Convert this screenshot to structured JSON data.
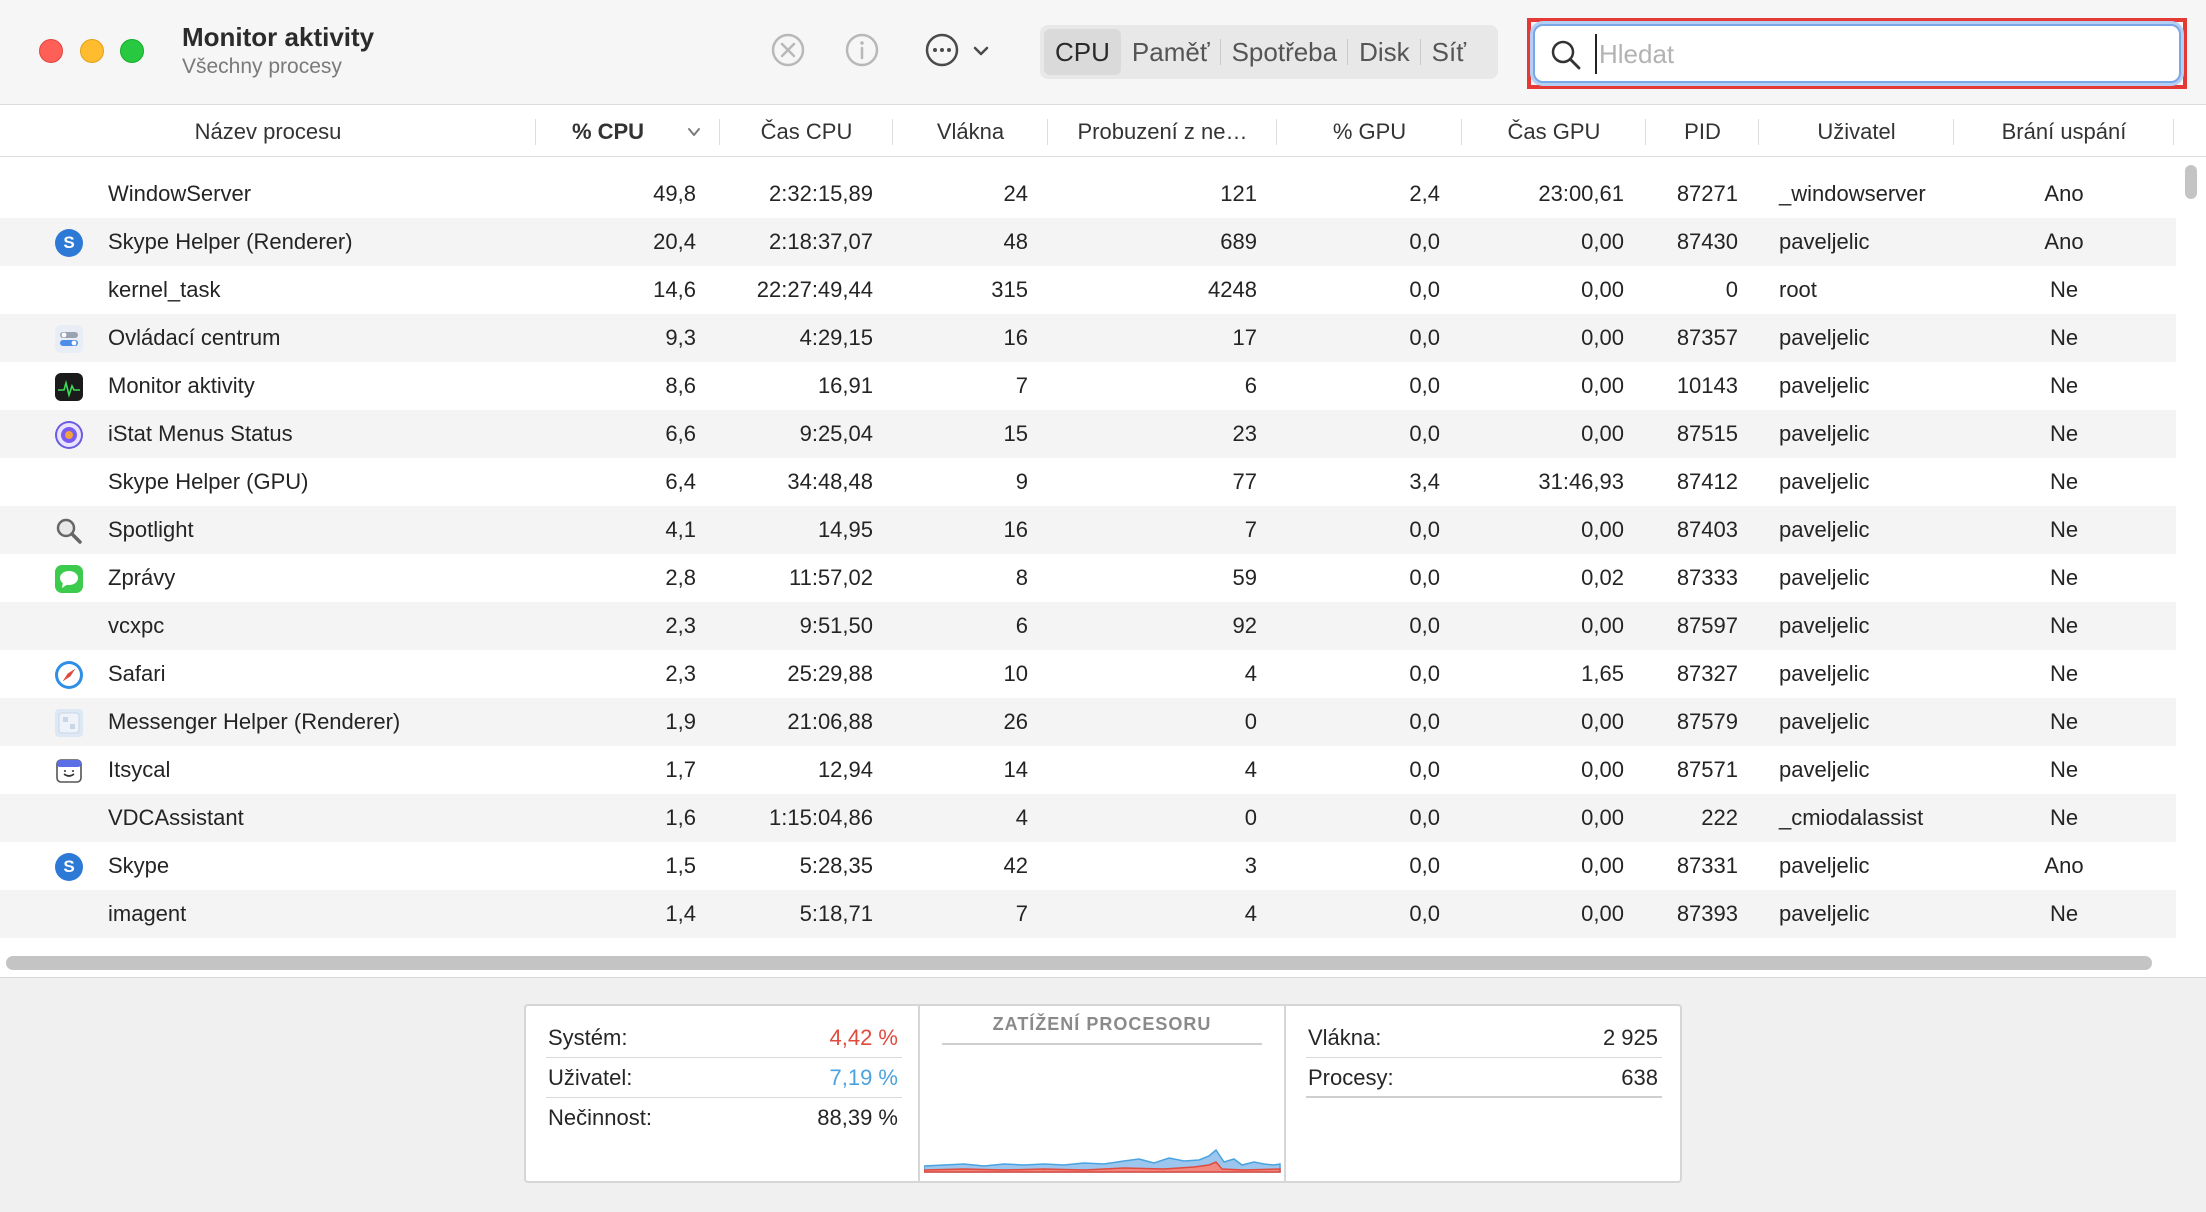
{
  "window": {
    "title": "Monitor aktivity",
    "subtitle": "Všechny procesy"
  },
  "toolbar": {
    "stop_icon": "stop-process-icon",
    "info_icon": "info-icon",
    "more_icon": "ellipsis-circle-icon",
    "tabs": [
      "CPU",
      "Paměť",
      "Spotřeba",
      "Disk",
      "Síť"
    ],
    "active_tab": "CPU",
    "search_placeholder": "Hledat",
    "search_value": ""
  },
  "table": {
    "columns": [
      "Název procesu",
      "% CPU",
      "Čas CPU",
      "Vlákna",
      "Probuzení z ne…",
      "% GPU",
      "Čas GPU",
      "PID",
      "Uživatel",
      "Brání uspání"
    ],
    "sorted_by": "% CPU",
    "rows": [
      {
        "icon": "none",
        "name": "WindowServer",
        "cpu": "49,8",
        "cpu_time": "2:32:15,89",
        "threads": "24",
        "wakeups": "121",
        "gpu": "2,4",
        "gpu_time": "23:00,61",
        "pid": "87271",
        "user": "_windowserver",
        "prevent_sleep": "Ano"
      },
      {
        "icon": "skype-icon",
        "name": "Skype Helper (Renderer)",
        "cpu": "20,4",
        "cpu_time": "2:18:37,07",
        "threads": "48",
        "wakeups": "689",
        "gpu": "0,0",
        "gpu_time": "0,00",
        "pid": "87430",
        "user": "paveljelic",
        "prevent_sleep": "Ano"
      },
      {
        "icon": "none",
        "name": "kernel_task",
        "cpu": "14,6",
        "cpu_time": "22:27:49,44",
        "threads": "315",
        "wakeups": "4248",
        "gpu": "0,0",
        "gpu_time": "0,00",
        "pid": "0",
        "user": "root",
        "prevent_sleep": "Ne"
      },
      {
        "icon": "control-center-icon",
        "name": "Ovládací centrum",
        "cpu": "9,3",
        "cpu_time": "4:29,15",
        "threads": "16",
        "wakeups": "17",
        "gpu": "0,0",
        "gpu_time": "0,00",
        "pid": "87357",
        "user": "paveljelic",
        "prevent_sleep": "Ne"
      },
      {
        "icon": "activity-monitor-icon",
        "name": "Monitor aktivity",
        "cpu": "8,6",
        "cpu_time": "16,91",
        "threads": "7",
        "wakeups": "6",
        "gpu": "0,0",
        "gpu_time": "0,00",
        "pid": "10143",
        "user": "paveljelic",
        "prevent_sleep": "Ne"
      },
      {
        "icon": "istat-icon",
        "name": "iStat Menus Status",
        "cpu": "6,6",
        "cpu_time": "9:25,04",
        "threads": "15",
        "wakeups": "23",
        "gpu": "0,0",
        "gpu_time": "0,00",
        "pid": "87515",
        "user": "paveljelic",
        "prevent_sleep": "Ne"
      },
      {
        "icon": "none",
        "name": "Skype Helper (GPU)",
        "cpu": "6,4",
        "cpu_time": "34:48,48",
        "threads": "9",
        "wakeups": "77",
        "gpu": "3,4",
        "gpu_time": "31:46,93",
        "pid": "87412",
        "user": "paveljelic",
        "prevent_sleep": "Ne"
      },
      {
        "icon": "spotlight-icon",
        "name": "Spotlight",
        "cpu": "4,1",
        "cpu_time": "14,95",
        "threads": "16",
        "wakeups": "7",
        "gpu": "0,0",
        "gpu_time": "0,00",
        "pid": "87403",
        "user": "paveljelic",
        "prevent_sleep": "Ne"
      },
      {
        "icon": "messages-icon",
        "name": "Zprávy",
        "cpu": "2,8",
        "cpu_time": "11:57,02",
        "threads": "8",
        "wakeups": "59",
        "gpu": "0,0",
        "gpu_time": "0,02",
        "pid": "87333",
        "user": "paveljelic",
        "prevent_sleep": "Ne"
      },
      {
        "icon": "none",
        "name": "vcxpc",
        "cpu": "2,3",
        "cpu_time": "9:51,50",
        "threads": "6",
        "wakeups": "92",
        "gpu": "0,0",
        "gpu_time": "0,00",
        "pid": "87597",
        "user": "paveljelic",
        "prevent_sleep": "Ne"
      },
      {
        "icon": "safari-icon",
        "name": "Safari",
        "cpu": "2,3",
        "cpu_time": "25:29,88",
        "threads": "10",
        "wakeups": "4",
        "gpu": "0,0",
        "gpu_time": "1,65",
        "pid": "87327",
        "user": "paveljelic",
        "prevent_sleep": "Ne"
      },
      {
        "icon": "messenger-icon",
        "name": "Messenger Helper (Renderer)",
        "cpu": "1,9",
        "cpu_time": "21:06,88",
        "threads": "26",
        "wakeups": "0",
        "gpu": "0,0",
        "gpu_time": "0,00",
        "pid": "87579",
        "user": "paveljelic",
        "prevent_sleep": "Ne"
      },
      {
        "icon": "itsycal-icon",
        "name": "Itsycal",
        "cpu": "1,7",
        "cpu_time": "12,94",
        "threads": "14",
        "wakeups": "4",
        "gpu": "0,0",
        "gpu_time": "0,00",
        "pid": "87571",
        "user": "paveljelic",
        "prevent_sleep": "Ne"
      },
      {
        "icon": "none",
        "name": "VDCAssistant",
        "cpu": "1,6",
        "cpu_time": "1:15:04,86",
        "threads": "4",
        "wakeups": "0",
        "gpu": "0,0",
        "gpu_time": "0,00",
        "pid": "222",
        "user": "_cmiodalassist",
        "prevent_sleep": "Ne"
      },
      {
        "icon": "skype-icon",
        "name": "Skype",
        "cpu": "1,5",
        "cpu_time": "5:28,35",
        "threads": "42",
        "wakeups": "3",
        "gpu": "0,0",
        "gpu_time": "0,00",
        "pid": "87331",
        "user": "paveljelic",
        "prevent_sleep": "Ano"
      },
      {
        "icon": "none",
        "name": "imagent",
        "cpu": "1,4",
        "cpu_time": "5:18,71",
        "threads": "7",
        "wakeups": "4",
        "gpu": "0,0",
        "gpu_time": "0,00",
        "pid": "87393",
        "user": "paveljelic",
        "prevent_sleep": "Ne"
      }
    ]
  },
  "footer": {
    "system_label": "Systém:",
    "system_value": "4,42 %",
    "user_label": "Uživatel:",
    "user_value": "7,19 %",
    "idle_label": "Nečinnost:",
    "idle_value": "88,39 %",
    "chart_title": "ZATÍŽENÍ PROCESORU",
    "threads_label": "Vlákna:",
    "threads_value": "2 925",
    "processes_label": "Procesy:",
    "processes_value": "638",
    "colors": {
      "system": "#e04b3f",
      "user": "#4aa3e0",
      "idle": "#262626"
    }
  }
}
